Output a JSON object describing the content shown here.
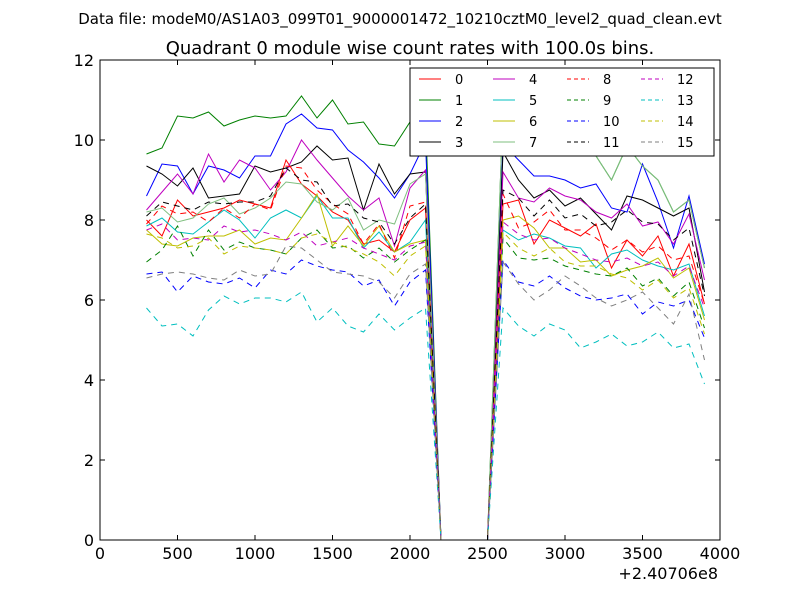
{
  "suptitle": "Data file: modeM0/AS1A03_099T01_9000001472_10210cztM0_level2_quad_clean.evt",
  "chart_data": {
    "type": "line",
    "title": "Quadrant 0 module wise count rates with 100.0s bins.",
    "xlabel": "",
    "ylabel": "",
    "x_offset_label": "+2.40706e8",
    "xlim": [
      0,
      4000
    ],
    "ylim": [
      0,
      12
    ],
    "xticks": [
      0,
      500,
      1000,
      1500,
      2000,
      2500,
      3000,
      3500,
      4000
    ],
    "yticks": [
      0,
      2,
      4,
      6,
      8,
      10,
      12
    ],
    "grid": false,
    "legend": {
      "placement": "top-right",
      "ncol": 4
    },
    "x": [
      300,
      400,
      500,
      600,
      700,
      800,
      900,
      1000,
      1100,
      1200,
      1300,
      1400,
      1500,
      1600,
      1700,
      1800,
      1900,
      2000,
      2100,
      2200,
      2300,
      2400,
      2500,
      2600,
      2700,
      2800,
      2900,
      3000,
      3100,
      3200,
      3300,
      3400,
      3500,
      3600,
      3700,
      3800,
      3900
    ],
    "series": [
      {
        "name": "0",
        "color": "#ff0000",
        "dash": "solid",
        "values": [
          8.0,
          7.6,
          8.5,
          8.1,
          8.2,
          8.3,
          8.5,
          8.4,
          8.3,
          9.5,
          8.9,
          8.6,
          8.2,
          8.0,
          7.4,
          7.5,
          7.2,
          8.0,
          8.3,
          0,
          0,
          0,
          0,
          8.4,
          8.5,
          7.4,
          8.0,
          7.8,
          7.6,
          7.9,
          6.8,
          7.5,
          7.1,
          7.6,
          6.6,
          7.4,
          5.9
        ]
      },
      {
        "name": "1",
        "color": "#008000",
        "dash": "solid",
        "values": [
          9.65,
          9.8,
          10.6,
          10.55,
          10.7,
          10.35,
          10.5,
          10.6,
          10.55,
          10.6,
          11.1,
          10.55,
          11.0,
          10.4,
          10.45,
          9.9,
          9.85,
          10.45,
          10.5,
          0,
          0,
          0,
          0,
          10.8,
          10.2,
          9.8,
          10.45,
          9.7,
          9.6,
          9.6,
          9.0,
          9.85,
          9.35,
          9.0,
          8.2,
          8.5,
          6.8
        ]
      },
      {
        "name": "2",
        "color": "#0000ff",
        "dash": "solid",
        "values": [
          8.6,
          9.4,
          9.35,
          8.65,
          9.35,
          9.25,
          9.05,
          9.6,
          9.6,
          10.4,
          10.65,
          10.3,
          10.25,
          9.75,
          9.45,
          9.05,
          8.55,
          9.15,
          9.95,
          0,
          0,
          0,
          0,
          9.9,
          9.5,
          9.1,
          9.1,
          9.0,
          8.8,
          8.9,
          8.3,
          8.2,
          9.4,
          8.45,
          7.3,
          8.6,
          6.9
        ]
      },
      {
        "name": "3",
        "color": "#000000",
        "dash": "solid",
        "values": [
          9.35,
          9.15,
          8.85,
          9.3,
          8.55,
          8.6,
          8.65,
          9.35,
          9.2,
          9.3,
          9.45,
          9.85,
          9.5,
          9.55,
          8.25,
          9.4,
          8.65,
          9.15,
          9.2,
          0,
          0,
          0,
          0,
          9.7,
          9.0,
          8.55,
          8.75,
          8.35,
          8.55,
          8.15,
          7.75,
          8.6,
          8.5,
          8.3,
          8.1,
          8.3,
          6.2
        ]
      },
      {
        "name": "4",
        "color": "#bf00bf",
        "dash": "solid",
        "values": [
          8.25,
          8.7,
          9.15,
          8.65,
          9.65,
          8.95,
          9.5,
          9.3,
          8.75,
          9.2,
          10.0,
          9.5,
          9.05,
          8.6,
          8.25,
          8.55,
          7.35,
          8.8,
          9.25,
          0,
          0,
          0,
          0,
          9.2,
          8.55,
          8.45,
          8.8,
          8.6,
          8.5,
          8.2,
          8.05,
          8.4,
          7.85,
          7.95,
          7.4,
          8.15,
          6.5
        ]
      },
      {
        "name": "5",
        "color": "#00bfbf",
        "dash": "solid",
        "values": [
          7.85,
          8.05,
          7.7,
          7.65,
          7.95,
          8.25,
          8.0,
          7.55,
          8.05,
          8.25,
          8.05,
          8.6,
          8.05,
          8.05,
          7.3,
          7.7,
          7.2,
          7.45,
          8.0,
          0,
          0,
          0,
          0,
          7.75,
          7.5,
          7.65,
          7.55,
          7.35,
          7.3,
          6.8,
          7.15,
          7.25,
          7.0,
          6.85,
          6.75,
          6.9,
          5.6
        ]
      },
      {
        "name": "6",
        "color": "#bfbf00",
        "dash": "solid",
        "values": [
          7.75,
          7.4,
          7.35,
          7.55,
          7.6,
          7.6,
          7.75,
          7.4,
          7.55,
          7.5,
          8.05,
          8.65,
          7.35,
          7.85,
          7.35,
          7.85,
          7.2,
          7.4,
          7.5,
          0,
          0,
          0,
          0,
          8.0,
          8.1,
          7.8,
          7.3,
          7.3,
          6.95,
          7.0,
          6.6,
          6.75,
          6.85,
          7.05,
          6.55,
          6.8,
          5.5
        ]
      },
      {
        "name": "7",
        "color": "#7fbf7f",
        "dash": "solid",
        "values": [
          8.2,
          8.3,
          7.95,
          8.05,
          8.4,
          8.55,
          8.15,
          8.3,
          8.55,
          8.95,
          8.9,
          8.45,
          8.25,
          8.55,
          7.75,
          8.0,
          7.9,
          8.9,
          9.15,
          0,
          0,
          0,
          0,
          10.8,
          10.3,
          9.8,
          10.45,
          9.7,
          9.6,
          9.6,
          9.0,
          9.85,
          9.35,
          9.0,
          8.2,
          8.5,
          6.8
        ]
      },
      {
        "name": "8",
        "color": "#ff0000",
        "dash": "dashed",
        "values": [
          7.9,
          8.35,
          8.15,
          8.2,
          7.95,
          8.3,
          8.05,
          8.4,
          8.25,
          9.35,
          9.3,
          8.75,
          8.4,
          8.15,
          7.4,
          7.9,
          7.05,
          8.35,
          8.45,
          0,
          0,
          0,
          0,
          8.65,
          7.8,
          7.95,
          8.25,
          7.75,
          7.75,
          7.55,
          7.25,
          7.5,
          7.2,
          7.35,
          7.0,
          7.1,
          5.9
        ]
      },
      {
        "name": "9",
        "color": "#008000",
        "dash": "dashed",
        "values": [
          6.95,
          7.25,
          7.85,
          7.1,
          7.75,
          7.25,
          7.45,
          7.3,
          7.25,
          7.15,
          7.55,
          7.75,
          7.3,
          7.35,
          7.05,
          7.3,
          6.95,
          7.25,
          7.5,
          0,
          0,
          0,
          0,
          7.55,
          7.05,
          7.0,
          7.05,
          6.85,
          6.75,
          6.65,
          6.6,
          6.8,
          6.35,
          6.55,
          6.1,
          6.45,
          5.3
        ]
      },
      {
        "name": "10",
        "color": "#0000ff",
        "dash": "dashed",
        "values": [
          6.65,
          6.7,
          6.2,
          6.6,
          6.45,
          6.4,
          6.55,
          6.3,
          6.75,
          6.65,
          7.0,
          6.85,
          6.75,
          6.7,
          6.35,
          6.5,
          5.85,
          6.45,
          6.75,
          0,
          0,
          0,
          0,
          7.0,
          6.45,
          6.35,
          6.6,
          6.3,
          6.1,
          6.0,
          6.05,
          6.15,
          5.65,
          5.95,
          5.85,
          6.0,
          5.05
        ]
      },
      {
        "name": "11",
        "color": "#000000",
        "dash": "dashed",
        "values": [
          8.1,
          8.45,
          8.35,
          8.25,
          8.45,
          8.4,
          8.45,
          8.45,
          8.6,
          9.3,
          9.0,
          8.95,
          8.35,
          8.4,
          8.05,
          7.95,
          7.4,
          8.05,
          8.4,
          0,
          0,
          0,
          0,
          8.75,
          8.55,
          8.1,
          8.5,
          8.05,
          8.15,
          7.85,
          7.95,
          8.25,
          7.95,
          7.9,
          7.5,
          7.8,
          6.1
        ]
      },
      {
        "name": "12",
        "color": "#bf00bf",
        "dash": "dashed",
        "values": [
          7.75,
          7.9,
          7.5,
          7.55,
          7.5,
          7.85,
          7.7,
          7.75,
          7.65,
          7.5,
          7.7,
          7.35,
          7.45,
          7.55,
          7.3,
          7.15,
          7.0,
          7.35,
          7.45,
          0,
          0,
          0,
          0,
          7.95,
          7.65,
          7.5,
          7.55,
          7.3,
          7.15,
          7.0,
          6.95,
          7.05,
          6.85,
          6.95,
          6.6,
          6.85,
          5.8
        ]
      },
      {
        "name": "13",
        "color": "#00bfbf",
        "dash": "dashed",
        "values": [
          5.8,
          5.35,
          5.4,
          5.1,
          5.75,
          6.1,
          5.9,
          6.05,
          6.05,
          5.95,
          6.2,
          5.45,
          5.8,
          5.35,
          5.2,
          5.65,
          5.25,
          5.55,
          5.8,
          0,
          0,
          0,
          0,
          5.8,
          5.35,
          5.1,
          5.4,
          5.25,
          4.8,
          4.95,
          5.15,
          4.85,
          4.95,
          5.2,
          4.8,
          4.9,
          3.9
        ]
      },
      {
        "name": "14",
        "color": "#bfbf00",
        "dash": "dashed",
        "values": [
          7.65,
          7.55,
          7.3,
          7.35,
          7.55,
          7.15,
          7.35,
          7.3,
          7.25,
          7.15,
          7.55,
          7.65,
          7.45,
          7.3,
          7.15,
          6.95,
          6.6,
          7.1,
          7.35,
          0,
          0,
          0,
          0,
          7.7,
          7.3,
          7.1,
          7.3,
          6.95,
          6.85,
          6.85,
          6.65,
          6.55,
          6.25,
          6.5,
          6.05,
          6.3,
          5.15
        ]
      },
      {
        "name": "15",
        "color": "#7f7f7f",
        "dash": "dashed",
        "values": [
          6.55,
          6.65,
          6.7,
          6.65,
          6.55,
          6.5,
          6.75,
          6.6,
          6.65,
          7.35,
          7.3,
          7.0,
          6.7,
          6.65,
          6.6,
          6.45,
          6.05,
          6.65,
          6.9,
          0,
          0,
          0,
          0,
          6.95,
          6.4,
          6.0,
          6.25,
          6.6,
          6.35,
          6.05,
          5.85,
          6.0,
          6.2,
          5.8,
          5.4,
          6.15,
          4.5
        ]
      }
    ]
  }
}
